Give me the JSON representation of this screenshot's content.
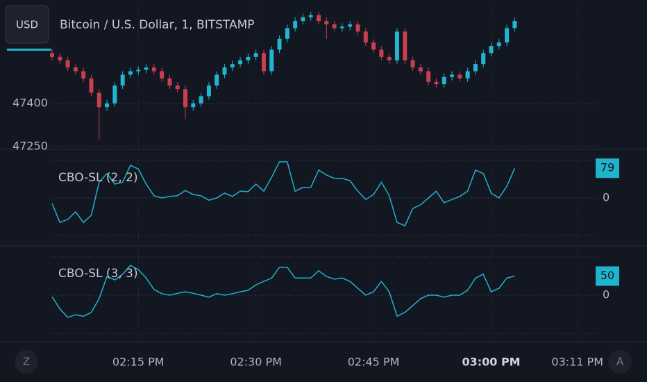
{
  "toolbar": {
    "currency": "USD",
    "zoom_button": "Z",
    "auto_button": "A"
  },
  "chart_data": [
    {
      "type": "candlestick",
      "title": "Bitcoin / U.S. Dollar, 1, BITSTAMP",
      "up_color": "#22b5d0",
      "down_color": "#c8404f",
      "x": [
        4,
        5,
        6,
        7,
        8,
        9,
        10,
        11,
        12,
        13,
        14,
        15,
        16,
        17,
        18,
        19,
        20,
        21,
        22,
        23,
        24,
        25,
        26,
        27,
        28,
        29,
        30,
        31,
        32,
        33,
        34,
        35,
        36,
        37,
        38,
        39,
        40,
        41,
        42,
        43,
        44,
        45,
        46,
        47,
        48,
        49,
        50,
        51,
        52,
        53,
        54,
        55,
        56,
        57,
        58,
        59,
        60,
        61,
        62,
        63
      ],
      "open": [
        47575,
        47562,
        47550,
        47525,
        47512,
        47487,
        47437,
        47387,
        47400,
        47462,
        47500,
        47512,
        47517,
        47525,
        47512,
        47487,
        47462,
        47450,
        47387,
        47400,
        47425,
        47462,
        47500,
        47525,
        47537,
        47550,
        47562,
        47575,
        47512,
        47587,
        47625,
        47662,
        47687,
        47700,
        47707,
        47687,
        47675,
        47662,
        47667,
        47675,
        47650,
        47612,
        47587,
        47562,
        47550,
        47650,
        47550,
        47525,
        47512,
        47475,
        47467,
        47492,
        47500,
        47487,
        47512,
        47537,
        47575,
        47600,
        47612,
        47662
      ],
      "high": [
        47587,
        47574,
        47562,
        47537,
        47524,
        47499,
        47449,
        47412,
        47474,
        47512,
        47524,
        47529,
        47537,
        47537,
        47524,
        47499,
        47474,
        47462,
        47412,
        47437,
        47474,
        47512,
        47537,
        47549,
        47562,
        47574,
        47587,
        47587,
        47599,
        47637,
        47674,
        47699,
        47712,
        47719,
        47719,
        47699,
        47687,
        47679,
        47687,
        47687,
        47662,
        47624,
        47599,
        47574,
        47662,
        47662,
        47562,
        47537,
        47524,
        47487,
        47504,
        47512,
        47512,
        47524,
        47549,
        47587,
        47612,
        47624,
        47674,
        47699
      ],
      "low": [
        47550,
        47538,
        47513,
        47500,
        47475,
        47425,
        47275,
        47375,
        47388,
        47450,
        47488,
        47500,
        47505,
        47500,
        47475,
        47450,
        47438,
        47345,
        47375,
        47388,
        47413,
        47450,
        47488,
        47513,
        47525,
        47538,
        47550,
        47500,
        47500,
        47575,
        47613,
        47650,
        47675,
        47688,
        47675,
        47625,
        47650,
        47650,
        47655,
        47638,
        47600,
        47575,
        47550,
        47538,
        47538,
        47538,
        47513,
        47500,
        47463,
        47455,
        47455,
        47480,
        47475,
        47475,
        47500,
        47525,
        47563,
        47588,
        47600,
        47650
      ],
      "close": [
        47562,
        47550,
        47525,
        47512,
        47487,
        47437,
        47387,
        47400,
        47462,
        47500,
        47512,
        47517,
        47525,
        47512,
        47487,
        47462,
        47450,
        47387,
        47400,
        47425,
        47462,
        47500,
        47525,
        47537,
        47550,
        47562,
        47575,
        47512,
        47587,
        47625,
        47662,
        47687,
        47700,
        47707,
        47687,
        47675,
        47662,
        47667,
        47675,
        47650,
        47612,
        47587,
        47562,
        47550,
        47650,
        47550,
        47525,
        47512,
        47475,
        47467,
        47492,
        47500,
        47487,
        47512,
        47537,
        47575,
        47600,
        47612,
        47662,
        47687
      ],
      "xlim": [
        4,
        73.5
      ],
      "ylim": [
        47240,
        47760
      ],
      "yticks": [
        47250,
        47400
      ],
      "xticks": [
        {
          "value": 15,
          "label": "02:15 PM"
        },
        {
          "value": 30,
          "label": "02:30 PM"
        },
        {
          "value": 45,
          "label": "02:45 PM"
        },
        {
          "value": 60,
          "label": "03:00 PM"
        },
        {
          "value": 71,
          "label": "03:11 PM"
        }
      ],
      "grid": true
    },
    {
      "type": "line",
      "title": "CBO-SL (2, 2)",
      "color": "#1fb3cc",
      "x": [
        4,
        5,
        6,
        7,
        8,
        9,
        10,
        11,
        12,
        13,
        14,
        15,
        16,
        17,
        18,
        19,
        20,
        21,
        22,
        23,
        24,
        25,
        26,
        27,
        28,
        29,
        30,
        31,
        32,
        33,
        34,
        35,
        36,
        37,
        38,
        39,
        40,
        41,
        42,
        43,
        44,
        45,
        46,
        47,
        48,
        49,
        50,
        51,
        52,
        53,
        54,
        55,
        56,
        57,
        58,
        59,
        60,
        61,
        62,
        63
      ],
      "values": [
        -15,
        -65,
        -57,
        -37,
        -65,
        -46,
        42,
        65,
        37,
        42,
        87,
        77,
        37,
        6,
        0,
        4,
        6,
        20,
        9,
        6,
        -6,
        0,
        13,
        4,
        18,
        17,
        37,
        18,
        55,
        96,
        96,
        18,
        28,
        28,
        74,
        61,
        52,
        52,
        46,
        18,
        -4,
        9,
        42,
        6,
        -65,
        -74,
        -28,
        -18,
        0,
        18,
        -13,
        -4,
        4,
        18,
        74,
        65,
        13,
        0,
        31,
        79
      ],
      "xlim": [
        4,
        73.5
      ],
      "ylim": [
        -120,
        120
      ],
      "yticks": [
        0
      ],
      "levels": [
        -100,
        100
      ],
      "grid": true
    },
    {
      "type": "line",
      "title": "CBO-SL (3, 3)",
      "color": "#1fb3cc",
      "x": [
        4,
        5,
        6,
        7,
        8,
        9,
        10,
        11,
        12,
        13,
        14,
        15,
        16,
        17,
        18,
        19,
        20,
        21,
        22,
        23,
        24,
        25,
        26,
        27,
        28,
        29,
        30,
        31,
        32,
        33,
        34,
        35,
        36,
        37,
        38,
        39,
        40,
        41,
        42,
        43,
        44,
        45,
        46,
        47,
        48,
        49,
        50,
        51,
        52,
        53,
        54,
        55,
        56,
        57,
        58,
        59,
        60,
        61,
        62,
        63
      ],
      "values": [
        -4,
        -36,
        -58,
        -51,
        -55,
        -45,
        -9,
        49,
        40,
        55,
        78,
        67,
        45,
        15,
        4,
        0,
        5,
        9,
        5,
        0,
        -5,
        4,
        0,
        4,
        9,
        13,
        27,
        36,
        45,
        73,
        73,
        45,
        45,
        45,
        64,
        49,
        42,
        45,
        36,
        18,
        0,
        9,
        36,
        9,
        -55,
        -45,
        -27,
        -9,
        0,
        0,
        -5,
        0,
        0,
        13,
        45,
        55,
        9,
        18,
        45,
        50
      ],
      "xlim": [
        4,
        73.5
      ],
      "ylim": [
        -120,
        120
      ],
      "yticks": [
        0
      ],
      "levels": [
        -100,
        100
      ],
      "grid": true
    }
  ]
}
